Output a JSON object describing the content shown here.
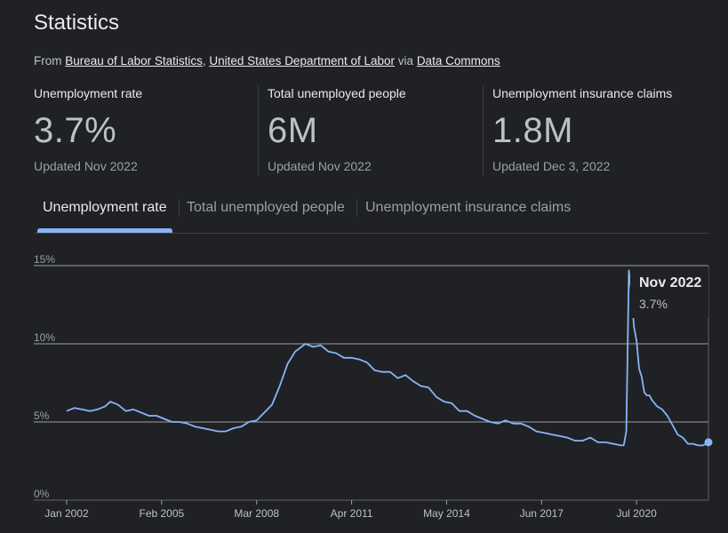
{
  "header": {
    "title": "Statistics"
  },
  "source": {
    "prefix": "From",
    "link1": "Bureau of Labor Statistics",
    "comma": ",",
    "link2": "United States Department of Labor",
    "via": "via",
    "link3": "Data Commons"
  },
  "stats": [
    {
      "label": "Unemployment rate",
      "value": "3.7%",
      "updated": "Updated Nov 2022"
    },
    {
      "label": "Total unemployed people",
      "value": "6M",
      "updated": "Updated Nov 2022"
    },
    {
      "label": "Unemployment insurance claims",
      "value": "1.8M",
      "updated": "Updated Dec 3, 2022"
    }
  ],
  "tabs": [
    {
      "label": "Unemployment rate",
      "active": true
    },
    {
      "label": "Total unemployed people",
      "active": false
    },
    {
      "label": "Unemployment insurance claims",
      "active": false
    }
  ],
  "tooltip": {
    "date": "Nov 2022",
    "value": "3.7%"
  },
  "colors": {
    "line": "#8ab4f8",
    "background": "#202124",
    "grid": "#9aa0a6"
  },
  "chart_data": {
    "type": "line",
    "title": "",
    "xlabel": "",
    "ylabel": "",
    "ylim": [
      0,
      15
    ],
    "y_ticks": [
      "0%",
      "5%",
      "10%",
      "15%"
    ],
    "y_tick_values": [
      0,
      5,
      10,
      15
    ],
    "x_ticks": [
      "Jan 2002",
      "Feb 2005",
      "Mar 2008",
      "Apr 2011",
      "May 2014",
      "Jun 2017",
      "Jul 2020"
    ],
    "x_tick_values": [
      "2002-01",
      "2005-02",
      "2008-03",
      "2011-04",
      "2014-05",
      "2017-06",
      "2020-07"
    ],
    "x_range": [
      "2002-01",
      "2022-11"
    ],
    "grid": true,
    "series": [
      {
        "x": [
          "2002-01",
          "2002-04",
          "2002-07",
          "2002-10",
          "2003-01",
          "2003-04",
          "2003-06",
          "2003-09",
          "2003-12",
          "2004-03",
          "2004-06",
          "2004-09",
          "2004-12",
          "2005-03",
          "2005-06",
          "2005-09",
          "2005-12",
          "2006-03",
          "2006-06",
          "2006-09",
          "2006-12",
          "2007-03",
          "2007-06",
          "2007-09",
          "2007-12",
          "2008-03",
          "2008-06",
          "2008-09",
          "2008-12",
          "2009-03",
          "2009-06",
          "2009-10",
          "2010-01",
          "2010-04",
          "2010-07",
          "2010-10",
          "2011-01",
          "2011-04",
          "2011-07",
          "2011-10",
          "2012-01",
          "2012-04",
          "2012-07",
          "2012-10",
          "2013-01",
          "2013-04",
          "2013-07",
          "2013-10",
          "2014-01",
          "2014-04",
          "2014-07",
          "2014-10",
          "2015-01",
          "2015-04",
          "2015-07",
          "2015-10",
          "2016-01",
          "2016-04",
          "2016-07",
          "2016-10",
          "2017-01",
          "2017-04",
          "2017-07",
          "2017-10",
          "2018-01",
          "2018-04",
          "2018-07",
          "2018-10",
          "2019-01",
          "2019-04",
          "2019-07",
          "2019-10",
          "2020-01",
          "2020-02",
          "2020-03",
          "2020-04",
          "2020-05",
          "2020-06",
          "2020-07",
          "2020-08",
          "2020-09",
          "2020-10",
          "2020-11",
          "2020-12",
          "2021-01",
          "2021-03",
          "2021-05",
          "2021-07",
          "2021-09",
          "2021-11",
          "2022-01",
          "2022-03",
          "2022-05",
          "2022-07",
          "2022-09",
          "2022-11"
        ],
        "values": [
          5.7,
          5.9,
          5.8,
          5.7,
          5.8,
          6.0,
          6.3,
          6.1,
          5.7,
          5.8,
          5.6,
          5.4,
          5.4,
          5.2,
          5.0,
          5.0,
          4.9,
          4.7,
          4.6,
          4.5,
          4.4,
          4.4,
          4.6,
          4.7,
          5.0,
          5.1,
          5.6,
          6.1,
          7.3,
          8.7,
          9.5,
          10.0,
          9.8,
          9.9,
          9.5,
          9.4,
          9.1,
          9.1,
          9.0,
          8.8,
          8.3,
          8.2,
          8.2,
          7.8,
          8.0,
          7.6,
          7.3,
          7.2,
          6.6,
          6.3,
          6.2,
          5.7,
          5.7,
          5.4,
          5.2,
          5.0,
          4.9,
          5.1,
          4.9,
          4.9,
          4.7,
          4.4,
          4.3,
          4.2,
          4.1,
          4.0,
          3.8,
          3.8,
          4.0,
          3.7,
          3.7,
          3.6,
          3.5,
          3.5,
          4.4,
          14.7,
          13.2,
          11.1,
          10.2,
          8.4,
          7.9,
          6.9,
          6.7,
          6.7,
          6.4,
          6.0,
          5.8,
          5.4,
          4.8,
          4.2,
          4.0,
          3.6,
          3.6,
          3.5,
          3.5,
          3.7
        ]
      }
    ]
  }
}
